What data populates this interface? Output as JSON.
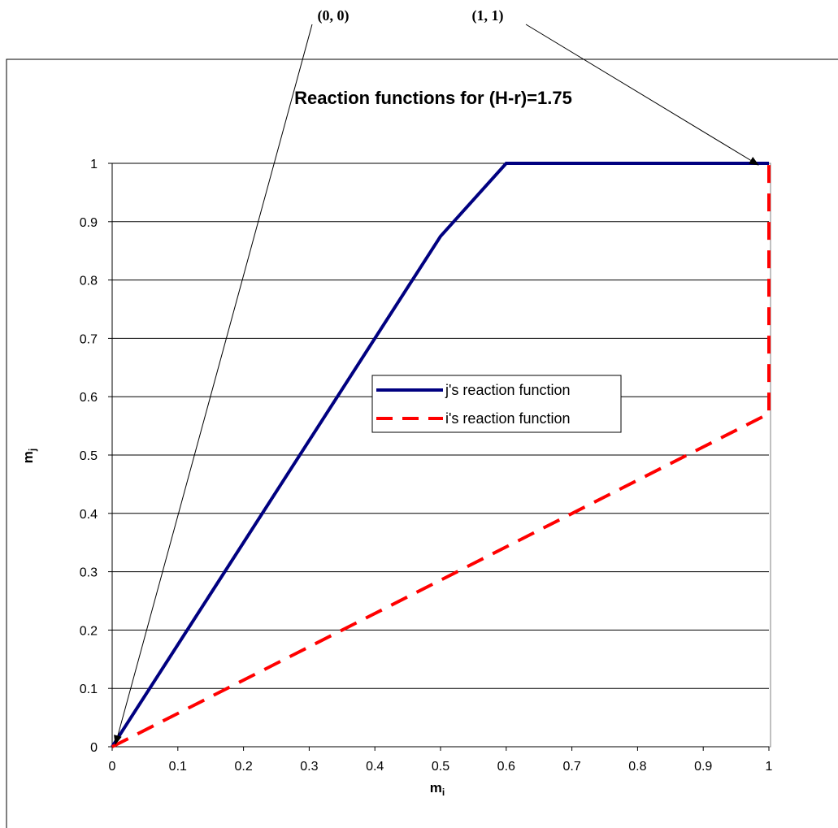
{
  "chart_data": {
    "type": "line",
    "title": "Reaction functions for (H-r)=1.75",
    "xlabel": "m",
    "xlabel_subscript": "i",
    "ylabel": "m",
    "ylabel_subscript": "j",
    "xlim": [
      0,
      1
    ],
    "ylim": [
      0,
      1
    ],
    "x_ticks": [
      "0",
      "0.1",
      "0.2",
      "0.3",
      "0.4",
      "0.5",
      "0.6",
      "0.7",
      "0.8",
      "0.9",
      "1"
    ],
    "y_ticks": [
      "0",
      "0.1",
      "0.2",
      "0.3",
      "0.4",
      "0.5",
      "0.6",
      "0.7",
      "0.8",
      "0.9",
      "1"
    ],
    "grid": "horizontal",
    "legend_position": "center-right",
    "series": [
      {
        "name": "j's reaction function",
        "color": "#000080",
        "style": "solid",
        "points": [
          [
            0,
            0
          ],
          [
            0.5,
            0.875
          ],
          [
            0.6,
            1
          ],
          [
            1,
            1
          ]
        ]
      },
      {
        "name": "i's reaction function",
        "color": "#ff0000",
        "style": "dashed",
        "points": [
          [
            0,
            0
          ],
          [
            1,
            0.571
          ],
          [
            1,
            1
          ]
        ]
      }
    ],
    "annotations": [
      {
        "text": "(0, 0)",
        "target": [
          0,
          0
        ]
      },
      {
        "text": "(1, 1)",
        "target": [
          1,
          1
        ]
      }
    ]
  }
}
